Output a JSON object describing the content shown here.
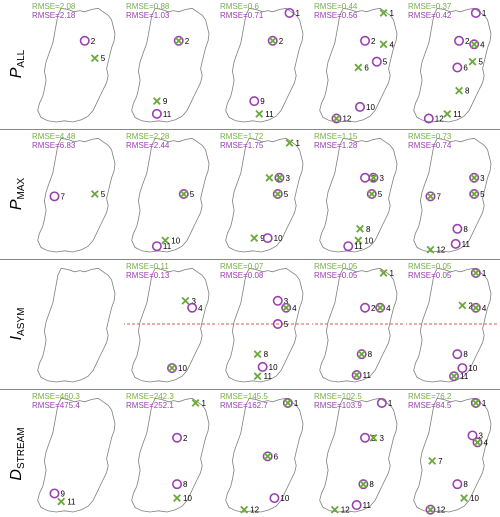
{
  "colors": {
    "outline": "#808080",
    "separator": "#888888",
    "cross": "#6aa83a",
    "circle": "#9b3fb0",
    "rmse_top": "#77b043",
    "rmse_bottom": "#9b3fb0",
    "dashed": "#e05a4a"
  },
  "rows": [
    {
      "label_main": "P",
      "label_sub": "ALL",
      "panels": [
        {
          "rmse1": "RMSE=2.08",
          "rmse2": "RMSE=2.18",
          "markers": [
            {
              "type": "circle",
              "label": "2",
              "x": 0.58,
              "y": 0.3
            },
            {
              "type": "cross",
              "label": "5",
              "x": 0.7,
              "y": 0.45
            }
          ]
        },
        {
          "rmse1": "RMSE=0.88",
          "rmse2": "RMSE=1.03",
          "markers": [
            {
              "type": "both",
              "label": "2",
              "x": 0.58,
              "y": 0.3
            },
            {
              "type": "cross",
              "label": "9",
              "x": 0.32,
              "y": 0.82
            },
            {
              "type": "circle",
              "label": "11",
              "x": 0.32,
              "y": 0.93
            }
          ]
        },
        {
          "rmse1": "RMSE=0.6",
          "rmse2": "RMSE=0.71",
          "markers": [
            {
              "type": "circle",
              "label": "1",
              "x": 0.78,
              "y": 0.06
            },
            {
              "type": "both",
              "label": "2",
              "x": 0.58,
              "y": 0.3
            },
            {
              "type": "circle",
              "label": "9",
              "x": 0.36,
              "y": 0.82
            },
            {
              "type": "cross",
              "label": "11",
              "x": 0.42,
              "y": 0.93
            }
          ]
        },
        {
          "rmse1": "RMSE=0.44",
          "rmse2": "RMSE=0.56",
          "markers": [
            {
              "type": "cross",
              "label": "1",
              "x": 0.78,
              "y": 0.06
            },
            {
              "type": "circle",
              "label": "2",
              "x": 0.56,
              "y": 0.3
            },
            {
              "type": "cross",
              "label": "4",
              "x": 0.78,
              "y": 0.33
            },
            {
              "type": "circle",
              "label": "5",
              "x": 0.7,
              "y": 0.48
            },
            {
              "type": "cross",
              "label": "6",
              "x": 0.48,
              "y": 0.53
            },
            {
              "type": "circle",
              "label": "10",
              "x": 0.5,
              "y": 0.87
            },
            {
              "type": "both",
              "label": "12",
              "x": 0.22,
              "y": 0.97
            }
          ]
        },
        {
          "rmse1": "RMSE=0.37",
          "rmse2": "RMSE=0.42",
          "markers": [
            {
              "type": "circle",
              "label": "1",
              "x": 0.76,
              "y": 0.06
            },
            {
              "type": "circle",
              "label": "2",
              "x": 0.56,
              "y": 0.3
            },
            {
              "type": "both",
              "label": "4",
              "x": 0.74,
              "y": 0.33
            },
            {
              "type": "cross",
              "label": "5",
              "x": 0.72,
              "y": 0.48
            },
            {
              "type": "circle",
              "label": "6",
              "x": 0.54,
              "y": 0.53
            },
            {
              "type": "cross",
              "label": "8",
              "x": 0.56,
              "y": 0.73
            },
            {
              "type": "cross",
              "label": "11",
              "x": 0.42,
              "y": 0.93
            },
            {
              "type": "circle",
              "label": "12",
              "x": 0.2,
              "y": 0.97
            }
          ]
        }
      ]
    },
    {
      "label_main": "P",
      "label_sub": "MAX",
      "panels": [
        {
          "rmse1": "RMSE=4.48",
          "rmse2": "RMSE=6.83",
          "markers": [
            {
              "type": "circle",
              "label": "7",
              "x": 0.22,
              "y": 0.52
            },
            {
              "type": "cross",
              "label": "5",
              "x": 0.7,
              "y": 0.5
            }
          ]
        },
        {
          "rmse1": "RMSE=2.28",
          "rmse2": "RMSE=2.44",
          "markers": [
            {
              "type": "both",
              "label": "5",
              "x": 0.64,
              "y": 0.5
            },
            {
              "type": "cross",
              "label": "10",
              "x": 0.42,
              "y": 0.9
            },
            {
              "type": "circle",
              "label": "11",
              "x": 0.32,
              "y": 0.95
            }
          ]
        },
        {
          "rmse1": "RMSE=1.72",
          "rmse2": "RMSE=1.75",
          "markers": [
            {
              "type": "cross",
              "label": "1",
              "x": 0.78,
              "y": 0.06
            },
            {
              "type": "cross",
              "label": "2",
              "x": 0.54,
              "y": 0.36
            },
            {
              "type": "both",
              "label": "3",
              "x": 0.66,
              "y": 0.36
            },
            {
              "type": "both",
              "label": "5",
              "x": 0.64,
              "y": 0.5
            },
            {
              "type": "cross",
              "label": "9",
              "x": 0.36,
              "y": 0.88
            },
            {
              "type": "circle",
              "label": "10",
              "x": 0.52,
              "y": 0.88
            }
          ]
        },
        {
          "rmse1": "RMSE=1.15",
          "rmse2": "RMSE=1.28",
          "markers": [
            {
              "type": "circle",
              "label": "2",
              "x": 0.56,
              "y": 0.36
            },
            {
              "type": "both",
              "label": "3",
              "x": 0.66,
              "y": 0.36
            },
            {
              "type": "both",
              "label": "5",
              "x": 0.64,
              "y": 0.5
            },
            {
              "type": "cross",
              "label": "8",
              "x": 0.5,
              "y": 0.8
            },
            {
              "type": "cross",
              "label": "10",
              "x": 0.48,
              "y": 0.9
            },
            {
              "type": "circle",
              "label": "11",
              "x": 0.36,
              "y": 0.95
            }
          ]
        },
        {
          "rmse1": "RMSE=0.73",
          "rmse2": "RMSE=0.74",
          "markers": [
            {
              "type": "both",
              "label": "3",
              "x": 0.74,
              "y": 0.36
            },
            {
              "type": "both",
              "label": "7",
              "x": 0.22,
              "y": 0.52
            },
            {
              "type": "both",
              "label": "5",
              "x": 0.74,
              "y": 0.5
            },
            {
              "type": "circle",
              "label": "8",
              "x": 0.54,
              "y": 0.8
            },
            {
              "type": "circle",
              "label": "11",
              "x": 0.52,
              "y": 0.93
            },
            {
              "type": "cross",
              "label": "12",
              "x": 0.22,
              "y": 0.98
            }
          ]
        }
      ]
    },
    {
      "label_main": "I",
      "label_sub": "ASYM",
      "panels": [
        {
          "rmse1": "",
          "rmse2": "",
          "hide_rmse": true,
          "markers": []
        },
        {
          "rmse1": "RMSE=0.11",
          "rmse2": "RMSE=0.13",
          "dashed": true,
          "markers": [
            {
              "type": "cross",
              "label": "3",
              "x": 0.66,
              "y": 0.3
            },
            {
              "type": "circle",
              "label": "4",
              "x": 0.74,
              "y": 0.36
            },
            {
              "type": "both",
              "label": "10",
              "x": 0.5,
              "y": 0.88
            }
          ]
        },
        {
          "rmse1": "RMSE=0.07",
          "rmse2": "RMSE=0.08",
          "dashed": true,
          "markers": [
            {
              "type": "circle",
              "label": "3",
              "x": 0.64,
              "y": 0.3
            },
            {
              "type": "both",
              "label": "4",
              "x": 0.74,
              "y": 0.36
            },
            {
              "type": "circle",
              "label": "5",
              "x": 0.64,
              "y": 0.5
            },
            {
              "type": "cross",
              "label": "8",
              "x": 0.4,
              "y": 0.76
            },
            {
              "type": "circle",
              "label": "10",
              "x": 0.46,
              "y": 0.87
            },
            {
              "type": "cross",
              "label": "11",
              "x": 0.4,
              "y": 0.95
            }
          ]
        },
        {
          "rmse1": "RMSE=0.05",
          "rmse2": "RMSE=0.05",
          "dashed": true,
          "markers": [
            {
              "type": "cross",
              "label": "1",
              "x": 0.78,
              "y": 0.06
            },
            {
              "type": "circle",
              "label": "2",
              "x": 0.56,
              "y": 0.36
            },
            {
              "type": "both",
              "label": "4",
              "x": 0.74,
              "y": 0.36
            },
            {
              "type": "both",
              "label": "8",
              "x": 0.52,
              "y": 0.76
            },
            {
              "type": "both",
              "label": "11",
              "x": 0.46,
              "y": 0.94
            }
          ]
        },
        {
          "rmse1": "RMSE=0.05",
          "rmse2": "RMSE=0.05",
          "dashed": true,
          "markers": [
            {
              "type": "both",
              "label": "1",
              "x": 0.76,
              "y": 0.06
            },
            {
              "type": "cross",
              "label": "2",
              "x": 0.6,
              "y": 0.34
            },
            {
              "type": "both",
              "label": "4",
              "x": 0.76,
              "y": 0.36
            },
            {
              "type": "circle",
              "label": "8",
              "x": 0.54,
              "y": 0.76
            },
            {
              "type": "circle",
              "label": "10",
              "x": 0.6,
              "y": 0.88
            },
            {
              "type": "both",
              "label": "11",
              "x": 0.5,
              "y": 0.95
            }
          ]
        }
      ]
    },
    {
      "label_main": "D",
      "label_sub": "STREAM",
      "panels": [
        {
          "rmse1": "RMSE=460.3",
          "rmse2": "RMSE=475.4",
          "markers": [
            {
              "type": "circle",
              "label": "9",
              "x": 0.22,
              "y": 0.84
            },
            {
              "type": "cross",
              "label": "11",
              "x": 0.3,
              "y": 0.91
            }
          ]
        },
        {
          "rmse1": "RMSE=242.3",
          "rmse2": "RMSE=252.1",
          "markers": [
            {
              "type": "cross",
              "label": "1",
              "x": 0.78,
              "y": 0.06
            },
            {
              "type": "circle",
              "label": "2",
              "x": 0.56,
              "y": 0.36
            },
            {
              "type": "circle",
              "label": "8",
              "x": 0.56,
              "y": 0.76
            },
            {
              "type": "cross",
              "label": "10",
              "x": 0.56,
              "y": 0.88
            }
          ]
        },
        {
          "rmse1": "RMSE=145.5",
          "rmse2": "RMSE=162.7",
          "markers": [
            {
              "type": "both",
              "label": "1",
              "x": 0.76,
              "y": 0.06
            },
            {
              "type": "both",
              "label": "6",
              "x": 0.52,
              "y": 0.52
            },
            {
              "type": "circle",
              "label": "10",
              "x": 0.6,
              "y": 0.88
            },
            {
              "type": "cross",
              "label": "12",
              "x": 0.24,
              "y": 0.98
            }
          ]
        },
        {
          "rmse1": "RMSE=102.5",
          "rmse2": "RMSE=103.9",
          "markers": [
            {
              "type": "circle",
              "label": "1",
              "x": 0.76,
              "y": 0.06
            },
            {
              "type": "circle",
              "label": "2",
              "x": 0.56,
              "y": 0.36
            },
            {
              "type": "cross",
              "label": "3",
              "x": 0.66,
              "y": 0.36
            },
            {
              "type": "both",
              "label": "8",
              "x": 0.54,
              "y": 0.76
            },
            {
              "type": "circle",
              "label": "11",
              "x": 0.46,
              "y": 0.94
            },
            {
              "type": "cross",
              "label": "12",
              "x": 0.2,
              "y": 0.98
            }
          ]
        },
        {
          "rmse1": "RMSE=76.2",
          "rmse2": "RMSE=84.5",
          "markers": [
            {
              "type": "both",
              "label": "1",
              "x": 0.76,
              "y": 0.06
            },
            {
              "type": "circle",
              "label": "3",
              "x": 0.72,
              "y": 0.34
            },
            {
              "type": "both",
              "label": "4",
              "x": 0.78,
              "y": 0.4
            },
            {
              "type": "cross",
              "label": "7",
              "x": 0.24,
              "y": 0.56
            },
            {
              "type": "circle",
              "label": "8",
              "x": 0.54,
              "y": 0.76
            },
            {
              "type": "cross",
              "label": "10",
              "x": 0.62,
              "y": 0.88
            },
            {
              "type": "both",
              "label": "12",
              "x": 0.22,
              "y": 0.98
            }
          ]
        }
      ]
    }
  ]
}
